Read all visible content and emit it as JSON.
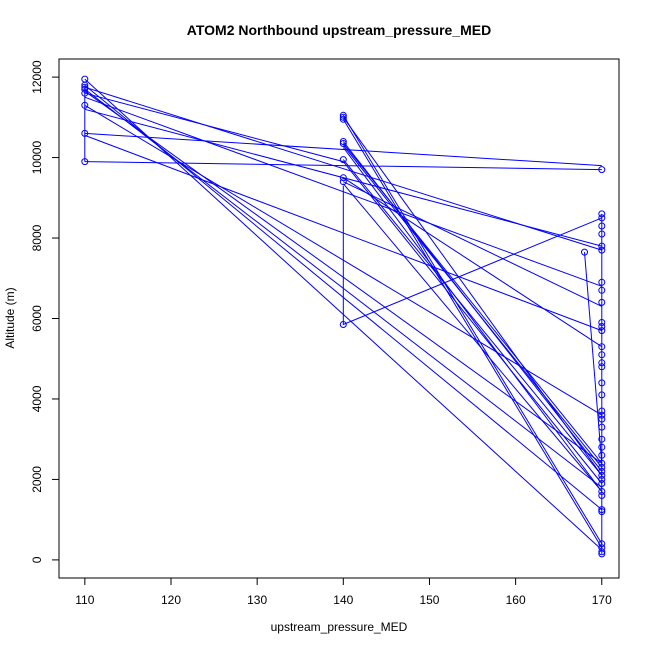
{
  "chart_data": {
    "type": "line",
    "title": "ATOM2 Northbound upstream_pressure_MED",
    "xlabel": "upstream_pressure_MED",
    "ylabel": "Altitude (m)",
    "xlim": [
      107,
      172
    ],
    "ylim": [
      -450,
      12450
    ],
    "x_ticks": [
      110,
      120,
      130,
      140,
      150,
      160,
      170
    ],
    "y_ticks": [
      0,
      2000,
      4000,
      6000,
      8000,
      10000,
      12000
    ],
    "grid": false,
    "color": "#0000ff",
    "series": [
      {
        "x": [
          110,
          170
        ],
        "y": [
          11950,
          250
        ]
      },
      {
        "x": [
          110,
          110
        ],
        "y": [
          11800,
          11600
        ]
      },
      {
        "x": [
          110,
          170
        ],
        "y": [
          11800,
          1250
        ]
      },
      {
        "x": [
          110,
          170
        ],
        "y": [
          11750,
          7700
        ]
      },
      {
        "x": [
          110,
          170
        ],
        "y": [
          11700,
          1800
        ]
      },
      {
        "x": [
          110,
          170
        ],
        "y": [
          11650,
          2400
        ]
      },
      {
        "x": [
          110,
          140,
          170
        ],
        "y": [
          11600,
          9900,
          1900
        ]
      },
      {
        "x": [
          110,
          170
        ],
        "y": [
          11500,
          6800
        ]
      },
      {
        "x": [
          110,
          170
        ],
        "y": [
          11300,
          3600
        ]
      },
      {
        "x": [
          110,
          170
        ],
        "y": [
          11200,
          7800
        ]
      },
      {
        "x": [
          110,
          170
        ],
        "y": [
          10600,
          9800
        ]
      },
      {
        "x": [
          110,
          170
        ],
        "y": [
          10550,
          5700
        ]
      },
      {
        "x": [
          110,
          110
        ],
        "y": [
          11700,
          9900
        ]
      },
      {
        "x": [
          110,
          170
        ],
        "y": [
          9900,
          9700
        ]
      },
      {
        "x": [
          140,
          170
        ],
        "y": [
          11050,
          400
        ]
      },
      {
        "x": [
          140,
          170
        ],
        "y": [
          11000,
          2100
        ]
      },
      {
        "x": [
          140,
          170
        ],
        "y": [
          10950,
          300
        ]
      },
      {
        "x": [
          140,
          170
        ],
        "y": [
          10400,
          2200
        ]
      },
      {
        "x": [
          140,
          170
        ],
        "y": [
          10350,
          2400
        ]
      },
      {
        "x": [
          140,
          170
        ],
        "y": [
          10300,
          2300
        ]
      },
      {
        "x": [
          140,
          170
        ],
        "y": [
          10250,
          1700
        ]
      },
      {
        "x": [
          140,
          170
        ],
        "y": [
          9950,
          2100
        ]
      },
      {
        "x": [
          140,
          170
        ],
        "y": [
          9500,
          5300
        ]
      },
      {
        "x": [
          140,
          170
        ],
        "y": [
          9400,
          6300
        ]
      },
      {
        "x": [
          140,
          170
        ],
        "y": [
          9350,
          1700
        ]
      },
      {
        "x": [
          140,
          140,
          170
        ],
        "y": [
          9300,
          5850,
          8500
        ]
      },
      {
        "x": [
          170,
          170
        ],
        "y": [
          8600,
          150
        ]
      },
      {
        "x": [
          168,
          170
        ],
        "y": [
          7650,
          2400
        ]
      }
    ],
    "points": [
      {
        "x": 110,
        "y": 11950
      },
      {
        "x": 110,
        "y": 11800
      },
      {
        "x": 110,
        "y": 11750
      },
      {
        "x": 110,
        "y": 11700
      },
      {
        "x": 110,
        "y": 11600
      },
      {
        "x": 110,
        "y": 11300
      },
      {
        "x": 110,
        "y": 10600
      },
      {
        "x": 110,
        "y": 9900
      },
      {
        "x": 140,
        "y": 11050
      },
      {
        "x": 140,
        "y": 11000
      },
      {
        "x": 140,
        "y": 10950
      },
      {
        "x": 140,
        "y": 10400
      },
      {
        "x": 140,
        "y": 10350
      },
      {
        "x": 140,
        "y": 9950
      },
      {
        "x": 140,
        "y": 9500
      },
      {
        "x": 140,
        "y": 9400
      },
      {
        "x": 140,
        "y": 5850
      },
      {
        "x": 168,
        "y": 7650
      },
      {
        "x": 170,
        "y": 9700
      },
      {
        "x": 170,
        "y": 8600
      },
      {
        "x": 170,
        "y": 8500
      },
      {
        "x": 170,
        "y": 8300
      },
      {
        "x": 170,
        "y": 8100
      },
      {
        "x": 170,
        "y": 7800
      },
      {
        "x": 170,
        "y": 7700
      },
      {
        "x": 170,
        "y": 6900
      },
      {
        "x": 170,
        "y": 6700
      },
      {
        "x": 170,
        "y": 6400
      },
      {
        "x": 170,
        "y": 5900
      },
      {
        "x": 170,
        "y": 5800
      },
      {
        "x": 170,
        "y": 5700
      },
      {
        "x": 170,
        "y": 5300
      },
      {
        "x": 170,
        "y": 5100
      },
      {
        "x": 170,
        "y": 4900
      },
      {
        "x": 170,
        "y": 4800
      },
      {
        "x": 170,
        "y": 4400
      },
      {
        "x": 170,
        "y": 4100
      },
      {
        "x": 170,
        "y": 3700
      },
      {
        "x": 170,
        "y": 3600
      },
      {
        "x": 170,
        "y": 3500
      },
      {
        "x": 170,
        "y": 3300
      },
      {
        "x": 170,
        "y": 3000
      },
      {
        "x": 170,
        "y": 2800
      },
      {
        "x": 170,
        "y": 2600
      },
      {
        "x": 170,
        "y": 2400
      },
      {
        "x": 170,
        "y": 2300
      },
      {
        "x": 170,
        "y": 2200
      },
      {
        "x": 170,
        "y": 2100
      },
      {
        "x": 170,
        "y": 2000
      },
      {
        "x": 170,
        "y": 1900
      },
      {
        "x": 170,
        "y": 1700
      },
      {
        "x": 170,
        "y": 1600
      },
      {
        "x": 170,
        "y": 1250
      },
      {
        "x": 170,
        "y": 1200
      },
      {
        "x": 170,
        "y": 400
      },
      {
        "x": 170,
        "y": 300
      },
      {
        "x": 170,
        "y": 200
      },
      {
        "x": 170,
        "y": 150
      }
    ]
  }
}
